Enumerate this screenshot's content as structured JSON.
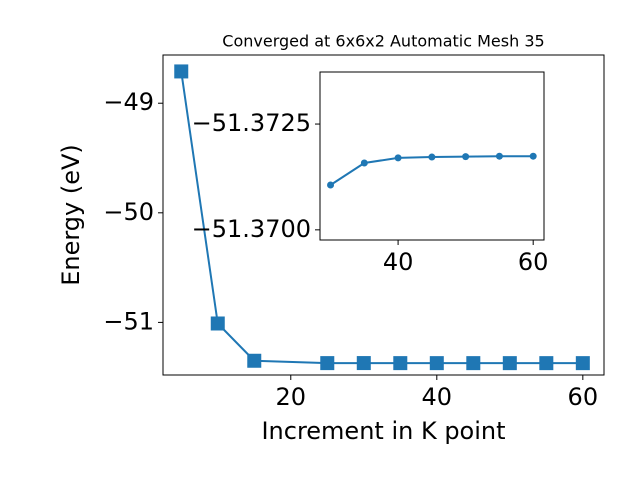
{
  "chart_data": [
    {
      "type": "line",
      "title": "Converged at 6x6x2 Automatic Mesh 35",
      "x_label": "Increment in K point",
      "y_label": "Energy (eV)",
      "x": [
        5,
        10,
        15,
        25,
        30,
        35,
        40,
        45,
        50,
        55,
        60
      ],
      "series": [
        {
          "color": "#1f77b4",
          "marker": "square",
          "values": [
            -48.71,
            -51.01,
            -51.35,
            -51.3715,
            -51.3711,
            -51.3716,
            -51.3717,
            -51.37172,
            -51.37173,
            -51.37174,
            -51.37174
          ]
        }
      ],
      "xlim": [
        2.5,
        62.9
      ],
      "xticks": [
        20,
        40,
        60
      ],
      "ylim": [
        -51.48,
        -48.56
      ],
      "yticks": [
        {
          "value": -51,
          "label": "−51"
        },
        {
          "value": -50,
          "label": "−50"
        },
        {
          "value": -49,
          "label": "−49"
        }
      ]
    },
    {
      "type": "line",
      "x": [
        30,
        35,
        40,
        45,
        50,
        55,
        60
      ],
      "series": [
        {
          "color": "#1f77b4",
          "marker": "circle",
          "values": [
            -51.37106,
            -51.37158,
            -51.3717,
            -51.37172,
            -51.37173,
            -51.37174,
            -51.37174
          ]
        }
      ],
      "xlim": [
        28.44,
        61.6
      ],
      "xticks": [
        40,
        60
      ],
      "ylim": [
        -51.36976,
        -51.37373
      ],
      "yticks": [
        {
          "value": -51.37,
          "label": "−51.3700"
        },
        {
          "value": -51.3725,
          "label": "−51.3725"
        }
      ]
    }
  ]
}
